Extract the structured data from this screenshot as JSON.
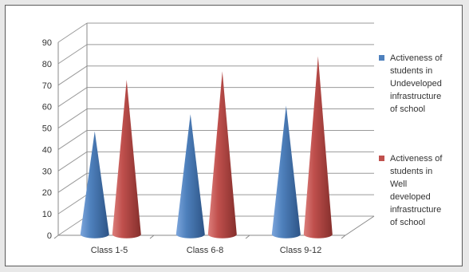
{
  "chart_data": {
    "type": "bar",
    "style": "3d-cone",
    "title": "",
    "xlabel": "",
    "ylabel": "",
    "ylim": [
      0,
      90
    ],
    "y_ticks": [
      "0",
      "10",
      "20",
      "30",
      "40",
      "50",
      "60",
      "70",
      "80",
      "90"
    ],
    "categories": [
      "Class 1-5",
      "Class 6-8",
      "Class 9-12"
    ],
    "series": [
      {
        "name": "Activeness of students in Undeveloped infrastructure of school",
        "color": "#4f81bd",
        "values": [
          48,
          56,
          60
        ]
      },
      {
        "name": "Activeness of students in Well developed infrastructure of school",
        "color": "#c0504d",
        "values": [
          72,
          76,
          83
        ]
      }
    ],
    "grid": true,
    "legend_position": "right"
  },
  "legend": {
    "items": [
      {
        "label": "Activeness of\nstudents in\nUndeveloped\ninfrastructure\nof school",
        "color": "#4f81bd"
      },
      {
        "label": "Activeness of\nstudents in\nWell\ndeveloped\ninfrastructure\nof school",
        "color": "#c0504d"
      }
    ]
  }
}
